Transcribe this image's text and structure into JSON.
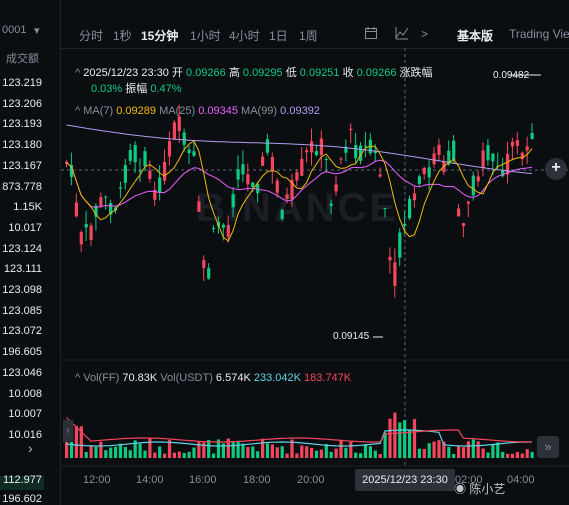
{
  "left_panel": {
    "header_a": "0001",
    "header_b": "成交额",
    "rows": [
      "123.219",
      "123.206",
      "123.193",
      "123.180",
      "123.167",
      "873.778",
      "1.15K",
      "10.017",
      "123.124",
      "123.111",
      "123.098",
      "123.085",
      "123.072",
      "196.605",
      "123.046",
      "10.008",
      "10.007",
      "10.016"
    ],
    "bottom_rows": [
      "112.977",
      "196.602"
    ]
  },
  "toolbar": {
    "items": [
      "分时",
      "1秒",
      "15分钟",
      "1小时",
      "4小时",
      "1日",
      "1周"
    ],
    "active": "15分钟",
    "more_icon": ">",
    "base_label": "基本版",
    "tv_label": "Trading View"
  },
  "ohlc": {
    "date": "2025/12/23 23:30",
    "open_label": "开",
    "open": "0.09266",
    "high_label": "高",
    "high": "0.09295",
    "low_label": "低",
    "low": "0.09251",
    "close_label": "收",
    "close": "0.09266",
    "change_label": "涨跌幅",
    "change": "0.03%",
    "amp_label": "振幅",
    "amp": "0.47%"
  },
  "ma": {
    "ma7_label": "MA(7)",
    "ma7": "0.09289",
    "ma25_label": "MA(25)",
    "ma25": "0.09345",
    "ma99_label": "MA(99)",
    "ma99": "0.09392"
  },
  "vol": {
    "ff_label": "Vol(FF)",
    "ff": "70.83K",
    "usdt_label": "Vol(USDT)",
    "usdt": "6.574K",
    "v1": "233.042K",
    "v2": "183.747K"
  },
  "markers": {
    "high": "0.09482",
    "low": "0.09145"
  },
  "time_axis": [
    "12:00",
    "14:00",
    "16:00",
    "18:00",
    "20:00",
    "02:00",
    "04:00"
  ],
  "crosshair_time": "2025/12/23 23:30",
  "watermark": "陈小艺",
  "chart_watermark": "BINANCE",
  "colors": {
    "up": "#0ecb81",
    "down": "#f6465d",
    "ma7": "#f0b90b",
    "ma25": "#e960ff",
    "ma99": "#b19cf0",
    "bg": "#0b0e11"
  },
  "icons": [
    "chevron-down-icon",
    "calendar-icon",
    "line-chart-icon",
    "chevron-right-icon",
    "plus-icon",
    "double-chevron-icon",
    "camera-icon"
  ]
}
